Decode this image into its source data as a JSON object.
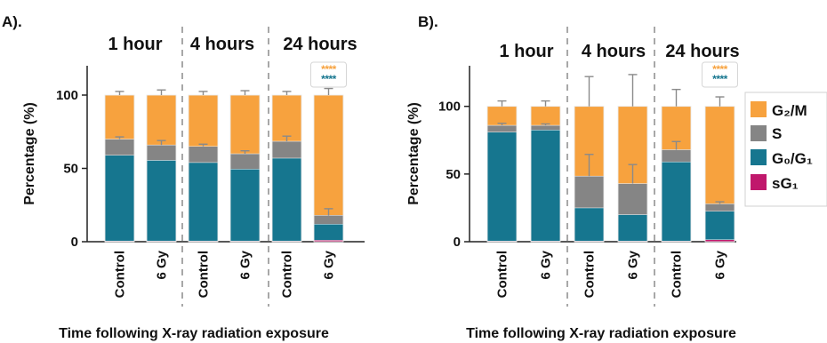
{
  "colors": {
    "G2M": "#f7a23e",
    "S": "#858585",
    "G0G1": "#16768f",
    "sG1": "#c0186c",
    "stars_orange": "#f7a23e",
    "stars_teal": "#16768f",
    "axis": "#222222",
    "divider": "#a8a8a8"
  },
  "legend": {
    "G2M": "G₂/M",
    "S": "S",
    "G0G1": "G₀/G₁",
    "sG1": "sG₁"
  },
  "chart_data": [
    {
      "panel": "A).",
      "type": "bar",
      "stacked": true,
      "groups": [
        "1 hour",
        "4 hours",
        "24 hours"
      ],
      "categories": [
        "Control",
        "6 Gy",
        "Control",
        "6 Gy",
        "Control",
        "6 Gy"
      ],
      "series": [
        {
          "key": "sG1",
          "name": "sG₁",
          "values": [
            0.5,
            0.5,
            0.5,
            0.5,
            0.5,
            1
          ]
        },
        {
          "key": "G0G1",
          "name": "G₀/G₁",
          "values": [
            58.5,
            55,
            53.5,
            49,
            56.5,
            11
          ]
        },
        {
          "key": "S",
          "name": "S",
          "values": [
            11,
            10.5,
            11,
            10.5,
            11.5,
            6
          ]
        },
        {
          "key": "G2M",
          "name": "G₂/M",
          "values": [
            30,
            34,
            35,
            40,
            31.5,
            82
          ]
        }
      ],
      "errors_top": [
        2.5,
        3.5,
        2.5,
        3,
        2.5,
        4.5
      ],
      "errors_s": [
        1.5,
        3,
        1.5,
        2,
        3.5,
        4.5
      ],
      "significance": {
        "category_index": 5,
        "marks": [
          "****",
          "****"
        ]
      },
      "ylabel": "Percentage (%)",
      "xlabel": "Time following X-ray radiation exposure",
      "ylim": [
        0,
        120
      ],
      "yticks": [
        0,
        50,
        100
      ],
      "grid": false
    },
    {
      "panel": "B).",
      "type": "bar",
      "stacked": true,
      "groups": [
        "1 hour",
        "4 hours",
        "24 hours"
      ],
      "categories": [
        "Control",
        "6 Gy",
        "Control",
        "6 Gy",
        "Control",
        "6 Gy"
      ],
      "series": [
        {
          "key": "sG1",
          "name": "sG₁",
          "values": [
            0.5,
            0.5,
            0.5,
            0.5,
            0.5,
            1.5
          ]
        },
        {
          "key": "G0G1",
          "name": "G₀/G₁",
          "values": [
            80.5,
            82,
            24.5,
            19.5,
            58.5,
            21
          ]
        },
        {
          "key": "S",
          "name": "S",
          "values": [
            5,
            3.5,
            23.5,
            23,
            9,
            5.5
          ]
        },
        {
          "key": "G2M",
          "name": "G₂/M",
          "values": [
            14,
            14,
            51.5,
            57,
            32,
            72
          ]
        }
      ],
      "errors_top": [
        4,
        4,
        22,
        23.5,
        12.5,
        7
      ],
      "errors_s": [
        1.5,
        1,
        16,
        14,
        6,
        1.5
      ],
      "significance": {
        "category_index": 5,
        "marks": [
          "****",
          "****"
        ]
      },
      "ylabel": "Percentage (%)",
      "xlabel": "Time following X-ray radiation exposure",
      "ylim": [
        0,
        130
      ],
      "yticks": [
        0,
        50,
        100
      ],
      "grid": false
    }
  ]
}
